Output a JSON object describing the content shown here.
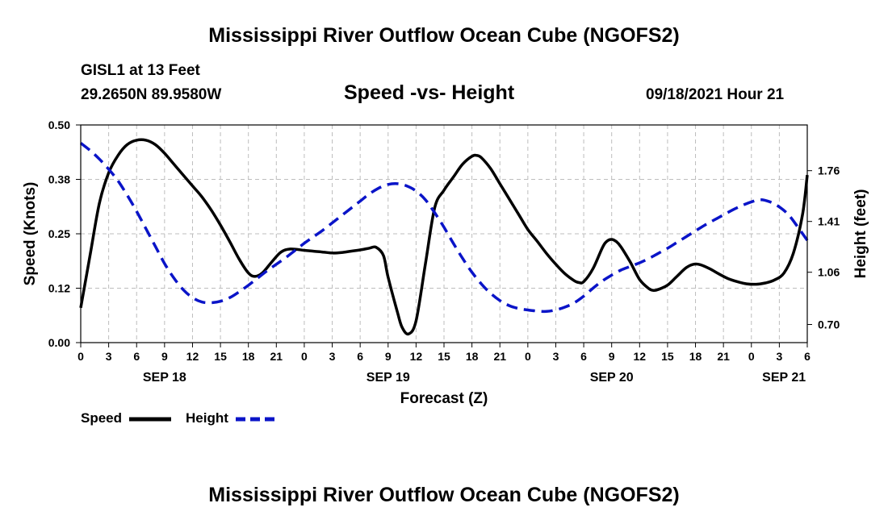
{
  "header": {
    "title": "Mississippi River Outflow Ocean Cube (NGOFS2)",
    "station": "GISL1 at 13 Feet",
    "coords": "29.2650N  89.9580W",
    "subtitle": "Speed -vs- Height",
    "datetime": "09/18/2021 Hour 21"
  },
  "footer": {
    "title": "Mississippi River Outflow Ocean Cube (NGOFS2)"
  },
  "legend": {
    "speed_label": "Speed",
    "height_label": "Height"
  },
  "colors": {
    "speed": "#000000",
    "height": "#0a14c8",
    "grid": "#bdbdbd"
  },
  "chart_data": {
    "type": "line",
    "xlabel": "Forecast (Z)",
    "ylabel_left": "Speed (Knots)",
    "ylabel_right": "Height (feet)",
    "x_range_hours": [
      0,
      78
    ],
    "x_tick_hours": [
      0,
      3,
      6,
      9,
      12,
      15,
      18,
      21,
      24,
      27,
      30,
      33,
      36,
      39,
      42,
      45,
      48,
      51,
      54,
      57,
      60,
      63,
      66,
      69,
      72,
      75,
      78
    ],
    "x_tick_labels": [
      "0",
      "3",
      "6",
      "9",
      "12",
      "15",
      "18",
      "21",
      "0",
      "3",
      "6",
      "9",
      "12",
      "15",
      "18",
      "21",
      "0",
      "3",
      "6",
      "9",
      "12",
      "15",
      "18",
      "21",
      "0",
      "3",
      "6"
    ],
    "date_labels": [
      {
        "hour": 9,
        "label": "SEP 18"
      },
      {
        "hour": 33,
        "label": "SEP 19"
      },
      {
        "hour": 57,
        "label": "SEP 20"
      },
      {
        "hour": 75.5,
        "label": "SEP 21"
      }
    ],
    "ylim_left": [
      0,
      0.5
    ],
    "y_ticks_left": [
      0,
      0.125,
      0.25,
      0.375,
      0.5
    ],
    "y_tick_labels_left": [
      "0.00",
      "0.12",
      "0.25",
      "0.38",
      "0.50"
    ],
    "ylim_right": [
      0.575,
      2.075
    ],
    "y_ticks_right": [
      0.7,
      1.06,
      1.41,
      1.76
    ],
    "y_tick_labels_right": [
      "0.70",
      "1.06",
      "1.41",
      "1.76"
    ],
    "series": [
      {
        "name": "Speed",
        "axis": "left",
        "style": "solid",
        "points": [
          [
            0,
            0.08
          ],
          [
            1,
            0.2
          ],
          [
            2,
            0.32
          ],
          [
            3,
            0.39
          ],
          [
            4,
            0.43
          ],
          [
            5,
            0.455
          ],
          [
            6,
            0.465
          ],
          [
            7,
            0.465
          ],
          [
            8,
            0.455
          ],
          [
            9,
            0.435
          ],
          [
            10,
            0.41
          ],
          [
            11,
            0.385
          ],
          [
            12,
            0.36
          ],
          [
            13,
            0.335
          ],
          [
            14,
            0.305
          ],
          [
            15,
            0.27
          ],
          [
            16,
            0.232
          ],
          [
            17,
            0.192
          ],
          [
            18,
            0.16
          ],
          [
            18.7,
            0.152
          ],
          [
            19.5,
            0.16
          ],
          [
            20.5,
            0.185
          ],
          [
            21.5,
            0.208
          ],
          [
            22.5,
            0.215
          ],
          [
            24,
            0.212
          ],
          [
            25,
            0.21
          ],
          [
            26,
            0.208
          ],
          [
            27,
            0.206
          ],
          [
            28,
            0.207
          ],
          [
            29,
            0.21
          ],
          [
            30,
            0.213
          ],
          [
            31,
            0.217
          ],
          [
            31.7,
            0.219
          ],
          [
            32.5,
            0.2
          ],
          [
            33,
            0.15
          ],
          [
            34,
            0.07
          ],
          [
            34.5,
            0.035
          ],
          [
            35.2,
            0.02
          ],
          [
            36,
            0.05
          ],
          [
            37,
            0.18
          ],
          [
            38,
            0.31
          ],
          [
            39,
            0.35
          ],
          [
            40,
            0.38
          ],
          [
            41,
            0.41
          ],
          [
            42,
            0.428
          ],
          [
            42.5,
            0.43
          ],
          [
            43,
            0.425
          ],
          [
            44,
            0.4
          ],
          [
            45,
            0.365
          ],
          [
            46,
            0.33
          ],
          [
            47,
            0.295
          ],
          [
            48,
            0.26
          ],
          [
            49,
            0.233
          ],
          [
            50,
            0.205
          ],
          [
            51,
            0.18
          ],
          [
            52,
            0.158
          ],
          [
            53,
            0.142
          ],
          [
            53.5,
            0.138
          ],
          [
            54,
            0.14
          ],
          [
            55,
            0.17
          ],
          [
            56,
            0.218
          ],
          [
            56.5,
            0.233
          ],
          [
            57,
            0.237
          ],
          [
            57.5,
            0.232
          ],
          [
            58,
            0.22
          ],
          [
            59,
            0.185
          ],
          [
            60,
            0.145
          ],
          [
            61,
            0.124
          ],
          [
            61.5,
            0.12
          ],
          [
            62,
            0.122
          ],
          [
            63,
            0.132
          ],
          [
            64,
            0.152
          ],
          [
            65,
            0.172
          ],
          [
            65.8,
            0.18
          ],
          [
            66.5,
            0.179
          ],
          [
            67.5,
            0.17
          ],
          [
            68.5,
            0.158
          ],
          [
            69.5,
            0.147
          ],
          [
            70.5,
            0.14
          ],
          [
            71.5,
            0.135
          ],
          [
            72.5,
            0.134
          ],
          [
            73.5,
            0.137
          ],
          [
            74.5,
            0.144
          ],
          [
            75.5,
            0.16
          ],
          [
            76.5,
            0.205
          ],
          [
            77.5,
            0.295
          ],
          [
            78,
            0.385
          ]
        ]
      },
      {
        "name": "Height",
        "axis": "right",
        "style": "dashed",
        "points": [
          [
            0,
            1.95
          ],
          [
            1,
            1.9
          ],
          [
            2,
            1.84
          ],
          [
            3,
            1.77
          ],
          [
            4,
            1.69
          ],
          [
            5,
            1.59
          ],
          [
            6,
            1.48
          ],
          [
            7,
            1.36
          ],
          [
            8,
            1.24
          ],
          [
            9,
            1.12
          ],
          [
            10,
            1.02
          ],
          [
            11,
            0.94
          ],
          [
            12,
            0.885
          ],
          [
            13,
            0.855
          ],
          [
            14,
            0.85
          ],
          [
            15,
            0.86
          ],
          [
            16,
            0.885
          ],
          [
            17,
            0.925
          ],
          [
            18,
            0.97
          ],
          [
            19,
            1.02
          ],
          [
            20,
            1.07
          ],
          [
            21,
            1.115
          ],
          [
            22,
            1.16
          ],
          [
            23,
            1.21
          ],
          [
            24,
            1.26
          ],
          [
            25,
            1.305
          ],
          [
            26,
            1.35
          ],
          [
            27,
            1.4
          ],
          [
            28,
            1.45
          ],
          [
            29,
            1.5
          ],
          [
            30,
            1.55
          ],
          [
            31,
            1.6
          ],
          [
            32,
            1.64
          ],
          [
            33,
            1.665
          ],
          [
            34,
            1.67
          ],
          [
            35,
            1.655
          ],
          [
            36,
            1.62
          ],
          [
            37,
            1.56
          ],
          [
            38,
            1.47
          ],
          [
            39,
            1.37
          ],
          [
            40,
            1.26
          ],
          [
            41,
            1.155
          ],
          [
            42,
            1.06
          ],
          [
            43,
            0.98
          ],
          [
            44,
            0.915
          ],
          [
            45,
            0.865
          ],
          [
            46,
            0.83
          ],
          [
            47,
            0.81
          ],
          [
            48,
            0.8
          ],
          [
            49,
            0.793
          ],
          [
            50,
            0.79
          ],
          [
            51,
            0.8
          ],
          [
            52,
            0.82
          ],
          [
            53,
            0.85
          ],
          [
            54,
            0.895
          ],
          [
            55,
            0.95
          ],
          [
            56,
            1.0
          ],
          [
            57,
            1.04
          ],
          [
            58,
            1.075
          ],
          [
            59,
            1.1
          ],
          [
            60,
            1.125
          ],
          [
            61,
            1.155
          ],
          [
            62,
            1.19
          ],
          [
            63,
            1.225
          ],
          [
            64,
            1.265
          ],
          [
            65,
            1.305
          ],
          [
            66,
            1.345
          ],
          [
            67,
            1.385
          ],
          [
            68,
            1.42
          ],
          [
            69,
            1.455
          ],
          [
            70,
            1.49
          ],
          [
            71,
            1.52
          ],
          [
            72,
            1.545
          ],
          [
            73,
            1.56
          ],
          [
            74,
            1.545
          ],
          [
            75,
            1.51
          ],
          [
            76,
            1.455
          ],
          [
            77,
            1.37
          ],
          [
            78,
            1.28
          ]
        ]
      }
    ]
  }
}
